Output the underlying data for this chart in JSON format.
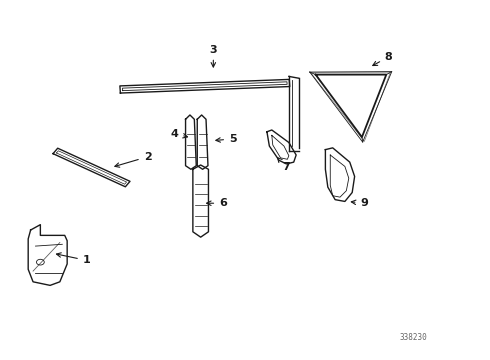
{
  "bg_color": "#ffffff",
  "fig_width": 4.9,
  "fig_height": 3.6,
  "dpi": 100,
  "watermark": "338230",
  "line_color": "#1a1a1a",
  "label_configs": [
    [
      1,
      0.175,
      0.275,
      0.105,
      0.295
    ],
    [
      2,
      0.3,
      0.565,
      0.225,
      0.535
    ],
    [
      3,
      0.435,
      0.865,
      0.435,
      0.805
    ],
    [
      4,
      0.355,
      0.63,
      0.39,
      0.618
    ],
    [
      5,
      0.475,
      0.615,
      0.432,
      0.61
    ],
    [
      6,
      0.455,
      0.435,
      0.413,
      0.435
    ],
    [
      7,
      0.585,
      0.535,
      0.565,
      0.565
    ],
    [
      8,
      0.795,
      0.845,
      0.755,
      0.815
    ],
    [
      9,
      0.745,
      0.435,
      0.71,
      0.44
    ]
  ]
}
